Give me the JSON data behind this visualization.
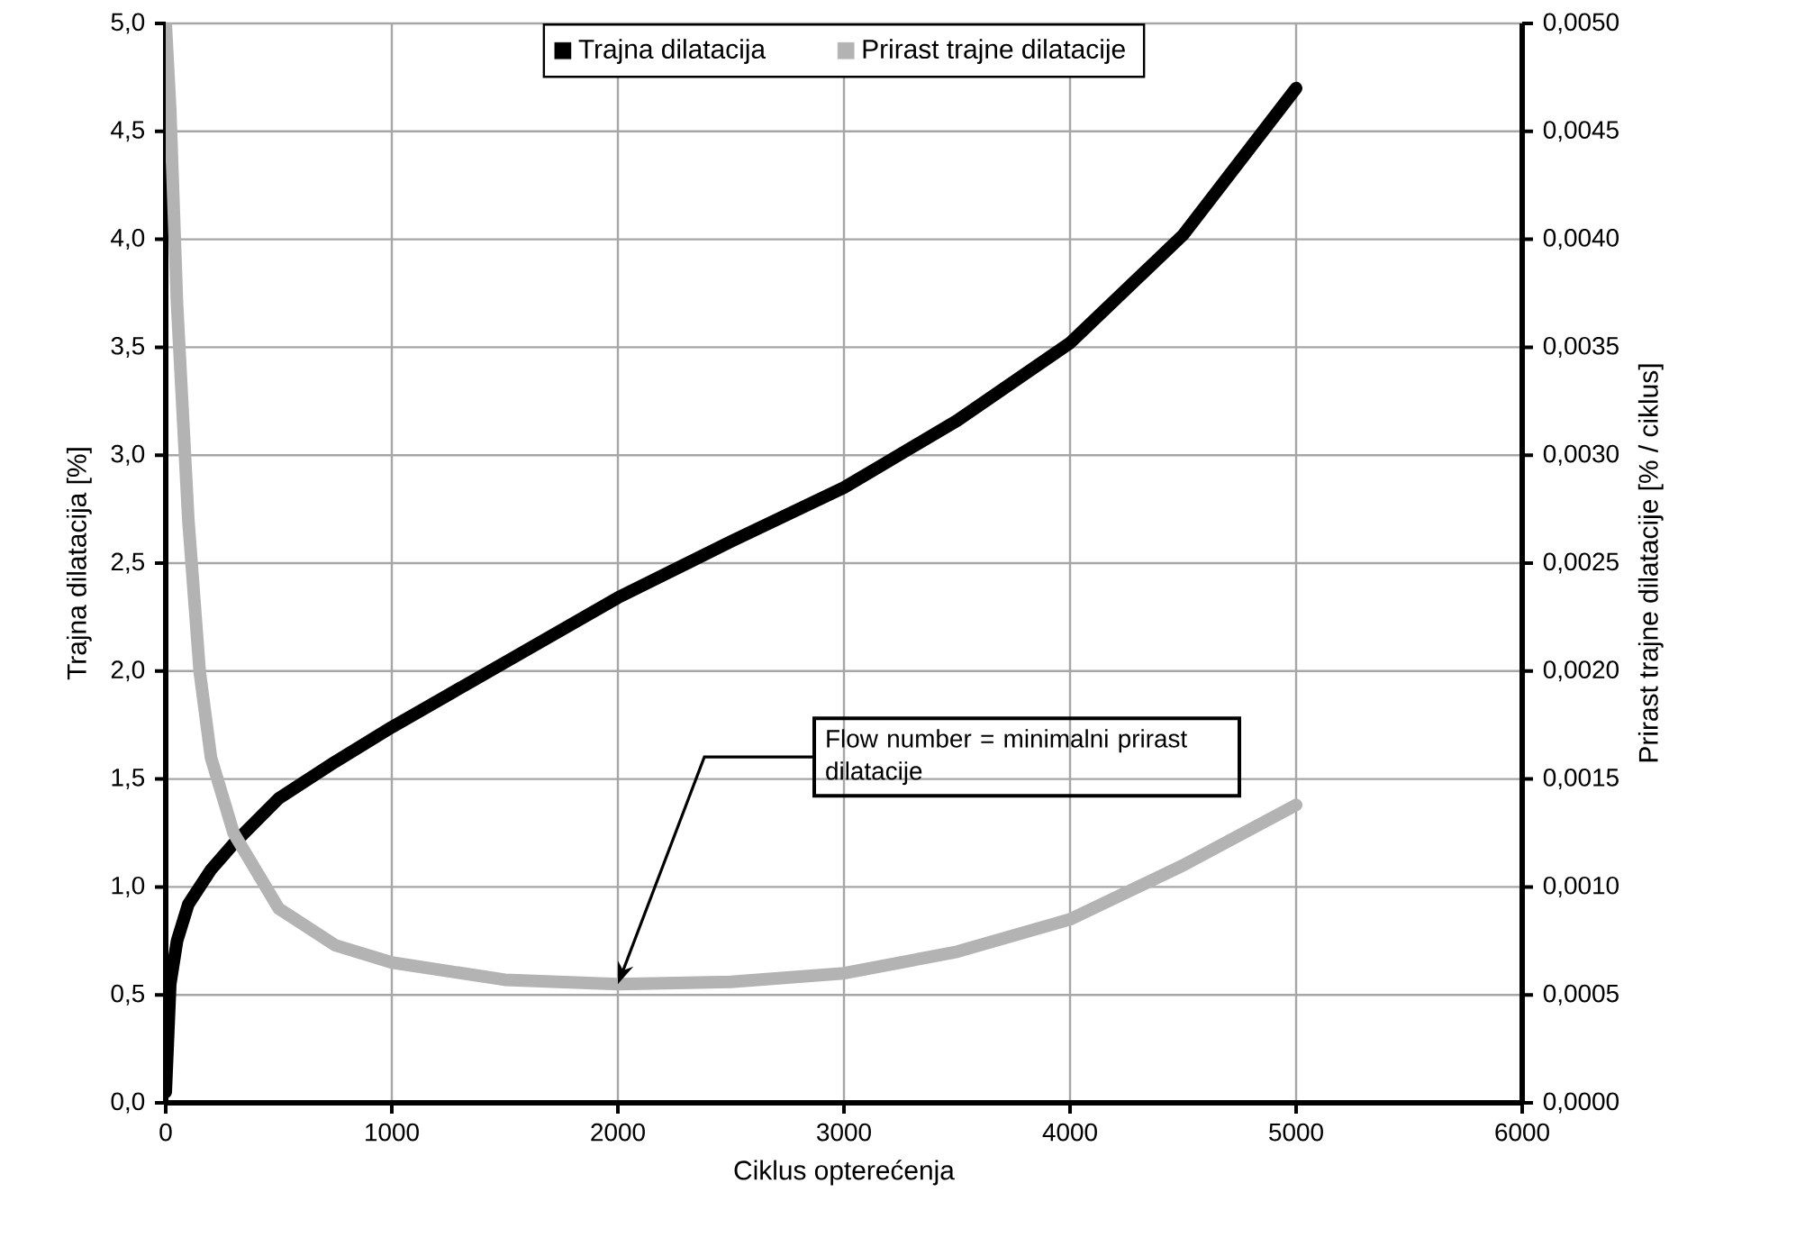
{
  "chart_data": {
    "type": "line",
    "xlabel": "Ciklus opterećenja",
    "ylabel": "Trajna dilatacija [%]",
    "y2label": "Prirast trajne dilatacije [% / ciklus]",
    "x": [
      0,
      20,
      50,
      100,
      150,
      200,
      300,
      500,
      750,
      1000,
      1500,
      2000,
      2500,
      3000,
      3500,
      4000,
      4500,
      5000
    ],
    "series": [
      {
        "name": "Trajna dilatacija",
        "color": "#000000",
        "values": [
          0.05,
          0.55,
          0.75,
          0.92,
          1.0,
          1.08,
          1.2,
          1.41,
          1.58,
          1.74,
          2.04,
          2.34,
          2.6,
          2.85,
          3.16,
          3.52,
          4.02,
          4.7
        ]
      },
      {
        "name": "Prirast trajne dilatacije",
        "color": "#b3b3b3",
        "axis": "y2",
        "values": [
          0.005,
          0.0046,
          0.0037,
          0.0027,
          0.002,
          0.0016,
          0.00125,
          0.0009,
          0.00073,
          0.00065,
          0.00057,
          0.00055,
          0.00056,
          0.0006,
          0.0007,
          0.00085,
          0.0011,
          0.00138
        ]
      }
    ],
    "xlim": [
      0,
      6000
    ],
    "xticks": [
      0,
      1000,
      2000,
      3000,
      4000,
      5000,
      6000
    ],
    "ylim": [
      0,
      5
    ],
    "yticks": [
      {
        "value": 0,
        "label": "0,0"
      },
      {
        "value": 0.5,
        "label": "0,5"
      },
      {
        "value": 1,
        "label": "1,0"
      },
      {
        "value": 1.5,
        "label": "1,5"
      },
      {
        "value": 2,
        "label": "2,0"
      },
      {
        "value": 2.5,
        "label": "2,5"
      },
      {
        "value": 3,
        "label": "3,0"
      },
      {
        "value": 3.5,
        "label": "3,5"
      },
      {
        "value": 4,
        "label": "4,0"
      },
      {
        "value": 4.5,
        "label": "4,5"
      },
      {
        "value": 5,
        "label": "5,0"
      }
    ],
    "y2lim": [
      0,
      0.005
    ],
    "y2ticks": [
      {
        "value": 0,
        "label": "0,0000"
      },
      {
        "value": 0.0005,
        "label": "0,0005"
      },
      {
        "value": 0.001,
        "label": "0,0010"
      },
      {
        "value": 0.0015,
        "label": "0,0015"
      },
      {
        "value": 0.002,
        "label": "0,0020"
      },
      {
        "value": 0.0025,
        "label": "0,0025"
      },
      {
        "value": 0.003,
        "label": "0,0030"
      },
      {
        "value": 0.0035,
        "label": "0,0035"
      },
      {
        "value": 0.004,
        "label": "0,0040"
      },
      {
        "value": 0.0045,
        "label": "0,0045"
      },
      {
        "value": 0.005,
        "label": "0,0050"
      }
    ],
    "grid": true,
    "legend": "top",
    "annotations": [
      {
        "text": "Flow number = minimalni prirast dilatacije",
        "x": 2000,
        "y": 0.55
      }
    ]
  }
}
